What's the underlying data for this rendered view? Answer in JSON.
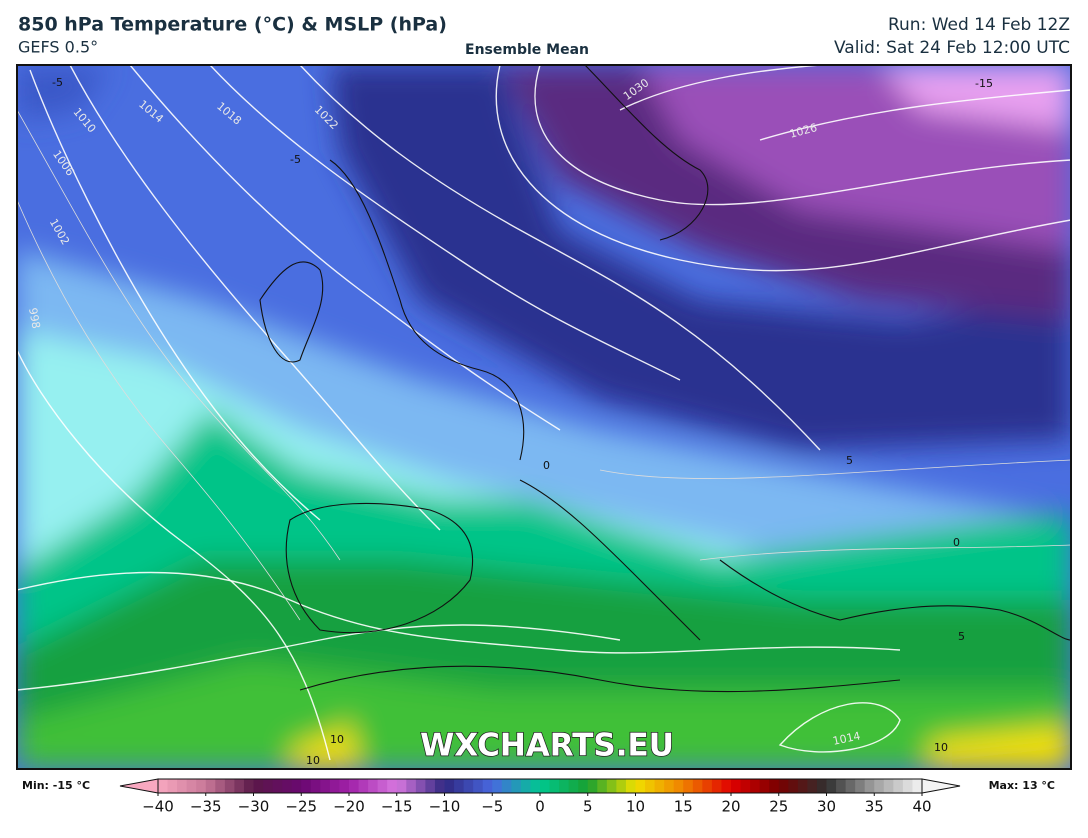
{
  "header": {
    "title": "850 hPa Temperature (°C) & MSLP (hPa)",
    "model": "GEFS 0.5°",
    "subtitle": "Ensemble Mean",
    "run": "Run: Wed 14 Feb 12Z",
    "valid": "Valid: Sat 24 Feb 12:00 UTC"
  },
  "map": {
    "watermark": "WXCHARTS.EU",
    "labels": [
      "-5",
      "1010",
      "1014",
      "1018",
      "1022",
      "1006",
      "1002",
      "998",
      "-5",
      "1030",
      "1026",
      "-15",
      "0",
      "5",
      "0",
      "5",
      "10",
      "10",
      "1014",
      "10"
    ]
  },
  "colorbar": {
    "min_label": "Min: -15 °C",
    "max_label": "Max: 13 °C",
    "range": [
      -40,
      40
    ],
    "colors": [
      "#f8a8c0",
      "#c87898",
      "#5a1848",
      "#6a0870",
      "#a020a8",
      "#d878e0",
      "#302880",
      "#4868e0",
      "#00c890",
      "#18a030",
      "#f0e000",
      "#f08000",
      "#e00000",
      "#780000",
      "#303030",
      "#a0a0a0",
      "#f4f4f4"
    ],
    "ticks": [
      {
        "value": -40,
        "label": "−40"
      },
      {
        "value": -35,
        "label": "−35"
      },
      {
        "value": -30,
        "label": "−30"
      },
      {
        "value": -25,
        "label": "−25"
      },
      {
        "value": -20,
        "label": "−20"
      },
      {
        "value": -15,
        "label": "−15"
      },
      {
        "value": -10,
        "label": "−10"
      },
      {
        "value": -5,
        "label": "−5"
      },
      0,
      5,
      10,
      15,
      20,
      25,
      30,
      35,
      40
    ]
  }
}
